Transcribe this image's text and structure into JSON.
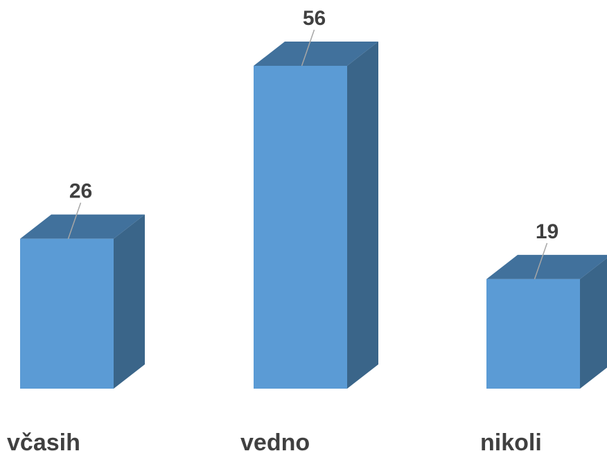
{
  "chart_data": {
    "type": "bar",
    "style": "3d-column",
    "categories": [
      "včasih",
      "vedno",
      "nikoli"
    ],
    "values": [
      26,
      56,
      19
    ],
    "ylim": [
      0,
      56
    ],
    "grid": false,
    "legend": "none",
    "colors": {
      "front": "#5b9bd5",
      "top": "#41719c",
      "side": "#3a6589",
      "label": "#404040",
      "leader": "#a6a6a6"
    }
  }
}
